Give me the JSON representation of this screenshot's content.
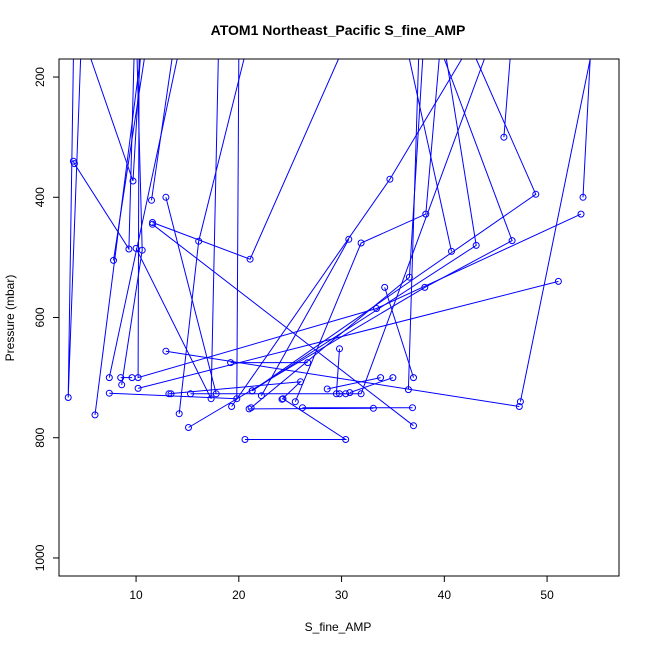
{
  "chart_data": {
    "type": "line",
    "title": "ATOM1 Northeast_Pacific S_fine_AMP",
    "xlabel": "S_fine_AMP",
    "ylabel": "Pressure (mbar)",
    "xlim": [
      2.5,
      57
    ],
    "ylim": [
      1030,
      170
    ],
    "y_reversed": true,
    "grid": false,
    "legend": "none",
    "x_ticks": [
      10,
      20,
      30,
      40,
      50
    ],
    "x_tick_labels": [
      "10",
      "20",
      "30",
      "40",
      "50"
    ],
    "y_ticks": [
      200,
      400,
      600,
      800,
      1000
    ],
    "y_tick_labels": [
      "200",
      "400",
      "600",
      "800",
      "1000"
    ],
    "line_color": "#0000ff",
    "marker": "open-circle",
    "series": [
      {
        "x": [
          3.9,
          3.4,
          4.6
        ],
        "y": [
          170,
          733,
          170
        ]
      },
      {
        "x": [
          3.9,
          4.0,
          9.3,
          9.8
        ],
        "y": [
          340,
          344,
          486,
          170
        ]
      },
      {
        "x": [
          6.0,
          10.4
        ],
        "y": [
          762,
          170
        ]
      },
      {
        "x": [
          7.4,
          14.0
        ],
        "y": [
          700,
          170
        ]
      },
      {
        "x": [
          7.8,
          10.8
        ],
        "y": [
          505,
          170
        ]
      },
      {
        "x": [
          5.6,
          9.7,
          10.4
        ],
        "y": [
          170,
          373,
          170
        ]
      },
      {
        "x": [
          8.5,
          9.6
        ],
        "y": [
          700,
          700
        ]
      },
      {
        "x": [
          8.6,
          10.6,
          10.1
        ],
        "y": [
          712,
          488,
          170
        ]
      },
      {
        "x": [
          10.3,
          10.2,
          33.4,
          53.3
        ],
        "y": [
          170,
          700,
          585,
          428
        ]
      },
      {
        "x": [
          10.0,
          17.3,
          18.0
        ],
        "y": [
          485,
          735,
          170
        ]
      },
      {
        "x": [
          10.2,
          51.1
        ],
        "y": [
          718,
          540
        ]
      },
      {
        "x": [
          7.4,
          19.8,
          20.0
        ],
        "y": [
          726,
          735,
          170
        ]
      },
      {
        "x": [
          11.5,
          13.5
        ],
        "y": [
          405,
          170
        ]
      },
      {
        "x": [
          11.6,
          21.1,
          29.7
        ],
        "y": [
          442,
          503,
          170
        ]
      },
      {
        "x": [
          12.9,
          17.8
        ],
        "y": [
          400,
          727
        ]
      },
      {
        "x": [
          11.6,
          37.0
        ],
        "y": [
          445,
          780
        ]
      },
      {
        "x": [
          12.9,
          47.3
        ],
        "y": [
          656,
          748
        ]
      },
      {
        "x": [
          13.4,
          13.2,
          26.0,
          24.2
        ],
        "y": [
          727,
          727,
          707,
          736
        ]
      },
      {
        "x": [
          14.2,
          16.1,
          20.5
        ],
        "y": [
          760,
          473,
          170
        ]
      },
      {
        "x": [
          15.1,
          38.1,
          46.6,
          40.0
        ],
        "y": [
          783,
          550,
          472,
          170
        ]
      },
      {
        "x": [
          15.3,
          31.9,
          43.9
        ],
        "y": [
          727,
          727,
          170
        ]
      },
      {
        "x": [
          19.2,
          26.7
        ],
        "y": [
          675,
          675
        ]
      },
      {
        "x": [
          19.3,
          34.7,
          41.7
        ],
        "y": [
          748,
          370,
          170
        ]
      },
      {
        "x": [
          21.2,
          36.6,
          37.9
        ],
        "y": [
          750,
          533,
          170
        ]
      },
      {
        "x": [
          21.3,
          48.9,
          43.1
        ],
        "y": [
          722,
          395,
          170
        ]
      },
      {
        "x": [
          21.3,
          43.1,
          40.2
        ],
        "y": [
          722,
          480,
          170
        ]
      },
      {
        "x": [
          22.2,
          30.7
        ],
        "y": [
          730,
          470
        ]
      },
      {
        "x": [
          20.6,
          30.4,
          24.3
        ],
        "y": [
          803,
          803,
          735
        ]
      },
      {
        "x": [
          25.5,
          31.9,
          38.2,
          39.5
        ],
        "y": [
          740,
          476,
          428,
          170
        ]
      },
      {
        "x": [
          26.2,
          36.9
        ],
        "y": [
          750,
          750
        ]
      },
      {
        "x": [
          21.0,
          33.1
        ],
        "y": [
          752,
          751
        ]
      },
      {
        "x": [
          29.5,
          29.8
        ],
        "y": [
          727,
          652
        ]
      },
      {
        "x": [
          30.8,
          35.0
        ],
        "y": [
          725,
          700
        ]
      },
      {
        "x": [
          29.8,
          30.4
        ],
        "y": [
          727,
          727
        ]
      },
      {
        "x": [
          36.6,
          40.7
        ],
        "y": [
          170,
          490
        ]
      },
      {
        "x": [
          37.5,
          36.5
        ],
        "y": [
          170,
          720
        ]
      },
      {
        "x": [
          34.2,
          37.0
        ],
        "y": [
          550,
          700
        ]
      },
      {
        "x": [
          28.6,
          33.8
        ],
        "y": [
          719,
          700
        ]
      },
      {
        "x": [
          46.4,
          45.8
        ],
        "y": [
          170,
          300
        ]
      },
      {
        "x": [
          53.5,
          54.2,
          47.4
        ],
        "y": [
          400,
          170,
          740
        ]
      }
    ]
  }
}
